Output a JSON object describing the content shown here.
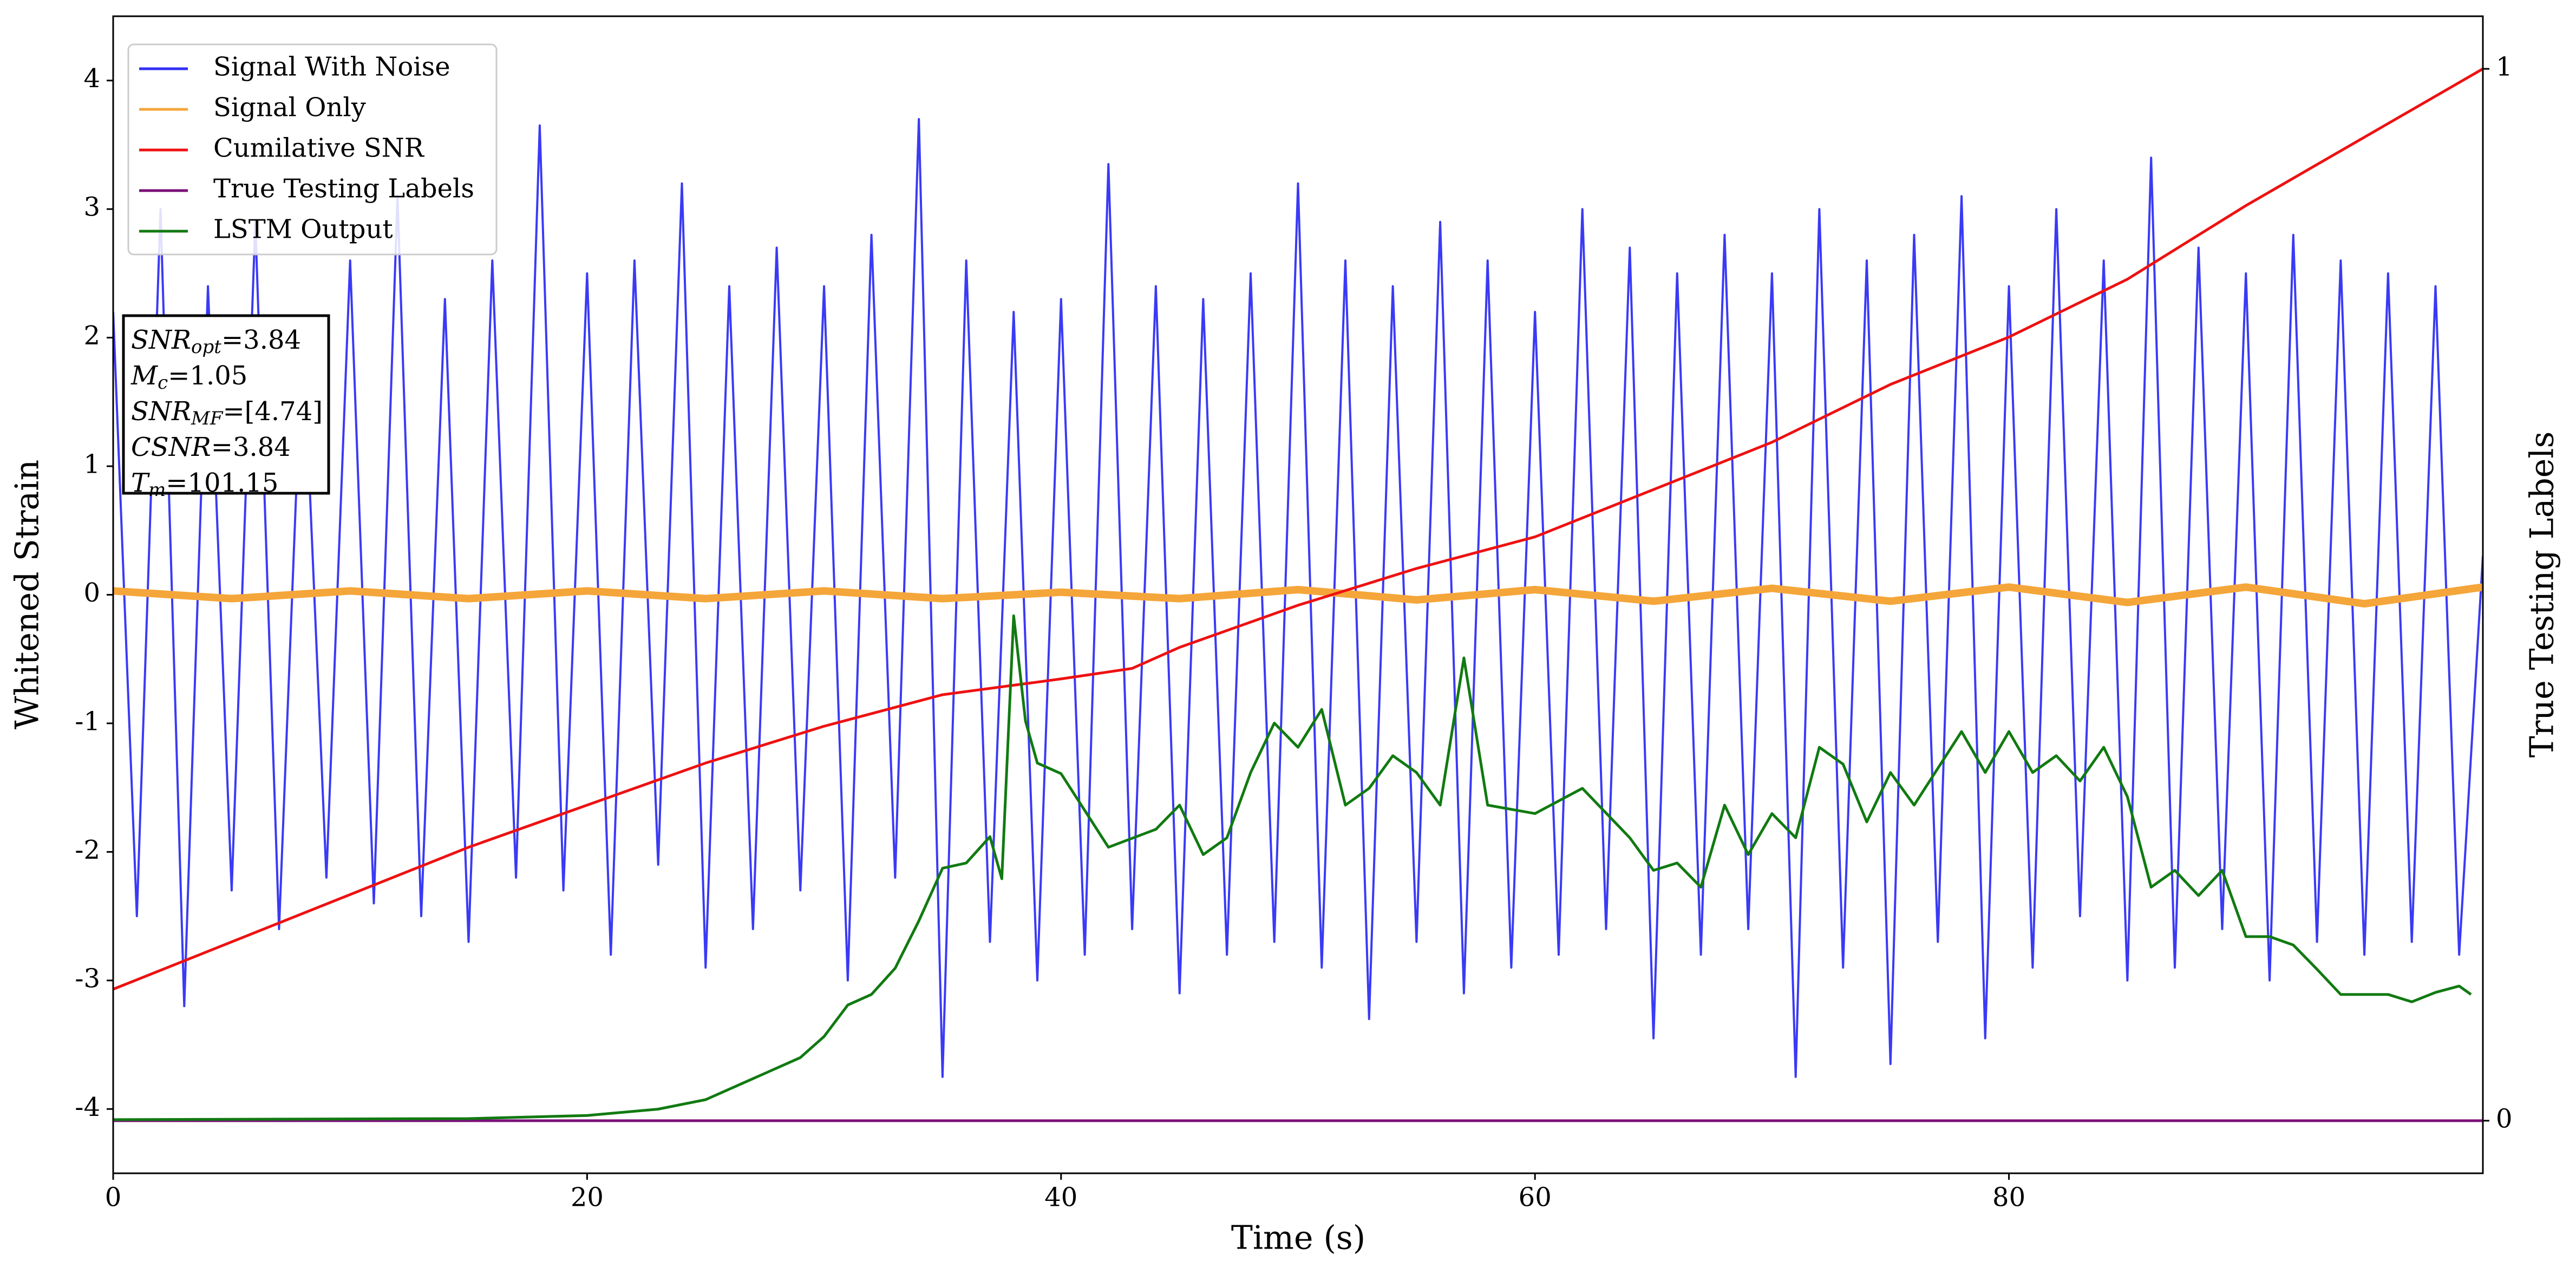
{
  "chart_data": {
    "type": "line",
    "xlabel": "Time (s)",
    "ylabel": "Whitened Strain",
    "y2label": "True Testing Labels",
    "xlim": [
      0,
      100
    ],
    "xticks": [
      0,
      20,
      40,
      60,
      80
    ],
    "ylim": [
      -4.5,
      4.5
    ],
    "yticks": [
      -4,
      -3,
      -2,
      -1,
      0,
      1,
      2,
      3,
      4
    ],
    "y2lim": [
      -0.05,
      1.05
    ],
    "y2ticks": [
      0,
      1
    ],
    "legend": "upper left",
    "series": [
      {
        "name": "Signal With Noise",
        "color": "#2f2ff5",
        "x": [
          0,
          1,
          2,
          3,
          4,
          5,
          6,
          7,
          8,
          9,
          10,
          11,
          12,
          13,
          14,
          15,
          16,
          17,
          18,
          19,
          20,
          21,
          22,
          23,
          24,
          25,
          26,
          27,
          28,
          29,
          30,
          31,
          32,
          33,
          34,
          35,
          36,
          37,
          38,
          39,
          40,
          41,
          42,
          43,
          44,
          45,
          46,
          47,
          48,
          49,
          50,
          51,
          52,
          53,
          54,
          55,
          56,
          57,
          58,
          59,
          60,
          61,
          62,
          63,
          64,
          65,
          66,
          67,
          68,
          69,
          70,
          71,
          72,
          73,
          74,
          75,
          76,
          77,
          78,
          79,
          80,
          81,
          82,
          83,
          84,
          85,
          86,
          87,
          88,
          89,
          90,
          91,
          92,
          93,
          94,
          95,
          96,
          97,
          98,
          99,
          100
        ],
        "values": [
          2.2,
          -2.5,
          3.0,
          -3.2,
          2.4,
          -2.3,
          2.9,
          -2.6,
          2.1,
          -2.2,
          2.6,
          -2.4,
          3.1,
          -2.5,
          2.3,
          -2.7,
          2.6,
          -2.2,
          3.65,
          -2.3,
          2.5,
          -2.8,
          2.6,
          -2.1,
          3.2,
          -2.9,
          2.4,
          -2.6,
          2.7,
          -2.3,
          2.4,
          -3.0,
          2.8,
          -2.2,
          3.7,
          -3.75,
          2.6,
          -2.7,
          2.2,
          -3.0,
          2.3,
          -2.8,
          3.35,
          -2.6,
          2.4,
          -3.1,
          2.3,
          -2.8,
          2.5,
          -2.7,
          3.2,
          -2.9,
          2.6,
          -3.3,
          2.4,
          -2.7,
          2.9,
          -3.1,
          2.6,
          -2.9,
          2.2,
          -2.8,
          3.0,
          -2.6,
          2.7,
          -3.45,
          2.5,
          -2.8,
          2.8,
          -2.6,
          2.5,
          -3.75,
          3.0,
          -2.9,
          2.6,
          -3.65,
          2.8,
          -2.7,
          3.1,
          -3.45,
          2.4,
          -2.9,
          3.0,
          -2.5,
          2.6,
          -3.0,
          3.4,
          -2.9,
          2.7,
          -2.6,
          2.5,
          -3.0,
          2.8,
          -2.7,
          2.6,
          -2.8,
          2.5,
          -2.7,
          2.4,
          -2.8,
          0.3
        ]
      },
      {
        "name": "Signal Only",
        "color": "#f4a63a",
        "x": [
          0,
          5,
          10,
          15,
          20,
          25,
          30,
          35,
          40,
          45,
          50,
          55,
          60,
          65,
          70,
          75,
          80,
          85,
          90,
          95,
          100
        ],
        "values": [
          0.03,
          -0.03,
          0.03,
          -0.03,
          0.03,
          -0.03,
          0.03,
          -0.03,
          0.02,
          -0.03,
          0.04,
          -0.04,
          0.04,
          -0.05,
          0.05,
          -0.05,
          0.06,
          -0.06,
          0.06,
          -0.07,
          0.06
        ]
      },
      {
        "name": "Cumilative SNR",
        "color": "#ee1111",
        "axis": "y2",
        "x": [
          0,
          5,
          10,
          15,
          20,
          25,
          30,
          35,
          40,
          43,
          45,
          50,
          55,
          60,
          65,
          70,
          75,
          80,
          85,
          90,
          95,
          100
        ],
        "values": [
          0.125,
          0.17,
          0.215,
          0.26,
          0.3,
          0.34,
          0.375,
          0.405,
          0.42,
          0.43,
          0.45,
          0.49,
          0.525,
          0.555,
          0.6,
          0.645,
          0.7,
          0.745,
          0.8,
          0.87,
          0.935,
          1.0
        ]
      },
      {
        "name": "True Testing Labels",
        "color": "#7a117a",
        "axis": "y2",
        "x": [
          0,
          100
        ],
        "values": [
          0,
          0
        ]
      },
      {
        "name": "LSTM Output",
        "color": "#117a11",
        "axis": "y2",
        "x": [
          0,
          15,
          20,
          23,
          25,
          27,
          29,
          30,
          31,
          32,
          33,
          34,
          35,
          36,
          37,
          37.5,
          38,
          38.5,
          39,
          40,
          42,
          44,
          45,
          46,
          47,
          48,
          49,
          50,
          51,
          52,
          53,
          54,
          55,
          56,
          57,
          58,
          60,
          62,
          64,
          65,
          66,
          67,
          68,
          69,
          70,
          71,
          72,
          73,
          74,
          75,
          76,
          78,
          79,
          80,
          81,
          82,
          83,
          84,
          85,
          86,
          87,
          88,
          89,
          90,
          91,
          92,
          93,
          94,
          95,
          96,
          97,
          98,
          99,
          99.5
        ],
        "values": [
          0.001,
          0.002,
          0.005,
          0.011,
          0.02,
          0.04,
          0.06,
          0.08,
          0.11,
          0.12,
          0.145,
          0.19,
          0.24,
          0.245,
          0.27,
          0.23,
          0.48,
          0.38,
          0.34,
          0.33,
          0.26,
          0.277,
          0.3,
          0.253,
          0.269,
          0.331,
          0.378,
          0.355,
          0.391,
          0.3,
          0.316,
          0.347,
          0.331,
          0.3,
          0.44,
          0.3,
          0.292,
          0.316,
          0.269,
          0.238,
          0.245,
          0.222,
          0.3,
          0.253,
          0.292,
          0.269,
          0.355,
          0.339,
          0.284,
          0.331,
          0.3,
          0.37,
          0.331,
          0.37,
          0.331,
          0.347,
          0.323,
          0.355,
          0.308,
          0.222,
          0.238,
          0.214,
          0.238,
          0.175,
          0.175,
          0.167,
          0.144,
          0.12,
          0.12,
          0.12,
          0.113,
          0.122,
          0.128,
          0.12
        ]
      }
    ],
    "annotations": [
      {
        "main": "SNR",
        "sub": "opt",
        "rest": "=3.84"
      },
      {
        "main": "M",
        "sub": "c",
        "rest": "=1.05"
      },
      {
        "main": "SNR",
        "sub": "MF",
        "rest": "=[4.74]"
      },
      {
        "main": "CSNR",
        "rest": "=3.84"
      },
      {
        "main": "T",
        "sub": "m",
        "rest": "=101.15"
      }
    ]
  }
}
